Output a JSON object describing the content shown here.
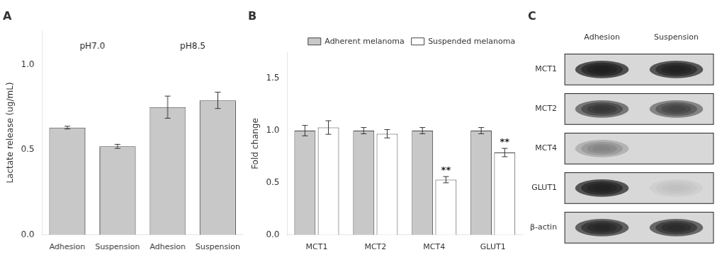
{
  "chart_data": [
    {
      "type": "bar",
      "title": "A",
      "categories": [
        "Adhesion",
        "Suspension",
        "Adhesion",
        "Suspension"
      ],
      "values": [
        0.63,
        0.52,
        0.75,
        0.79
      ],
      "errors": [
        0.008,
        0.012,
        0.065,
        0.048
      ],
      "color": "#c8c8c8",
      "ylabel": "Lactate release (ug/mL)",
      "ylim": [
        0.0,
        1.2
      ],
      "yticks": [
        {
          "value": 0,
          "label": "0.0"
        },
        0.5,
        {
          "value": 1,
          "label": "1.0"
        }
      ],
      "annotations": [
        {
          "text": "pH7.0",
          "y": 1.08,
          "span": [
            0,
            1
          ]
        },
        {
          "text": "pH8.5",
          "y": 1.08,
          "span": [
            2,
            3
          ]
        }
      ],
      "grid": false
    },
    {
      "type": "bar",
      "title": "B",
      "categories": [
        "MCT1",
        "MCT2",
        "MCT4",
        "GLUT1"
      ],
      "series": [
        {
          "name": "Adherent melanoma",
          "color": "#c8c8c8",
          "values": [
            1.0,
            1.0,
            1.0,
            1.0
          ],
          "errors": [
            0.05,
            0.03,
            0.03,
            0.03
          ]
        },
        {
          "name": "Suspended melanoma",
          "color": "#ffffff",
          "values": [
            1.03,
            0.97,
            0.53,
            0.79
          ],
          "errors": [
            0.065,
            0.04,
            0.03,
            0.04
          ]
        }
      ],
      "ylabel": "Fold change",
      "ylim": [
        0.0,
        1.75
      ],
      "yticks": [
        {
          "value": 0,
          "label": "0.0"
        },
        0.5,
        {
          "value": 1,
          "label": "1.0"
        },
        1.5
      ],
      "annotations": [
        {
          "text": "**",
          "category": "MCT4",
          "series": "Suspended melanoma"
        },
        {
          "text": "**",
          "category": "GLUT1",
          "series": "Suspended melanoma"
        }
      ],
      "legend": "upper right",
      "grid": false
    },
    {
      "type": "heatmap",
      "title": "C",
      "categories": [
        "Adhesion",
        "Suspension"
      ],
      "y_categories": [
        "MCT1",
        "MCT2",
        "MCT4",
        "GLUT1",
        "β-actin"
      ],
      "cells": [
        [
          0.82,
          0.78
        ],
        [
          0.58,
          0.5
        ],
        [
          0.22,
          0.0
        ],
        [
          0.8,
          0.05
        ],
        [
          0.72,
          0.68
        ]
      ],
      "grid": false
    }
  ]
}
